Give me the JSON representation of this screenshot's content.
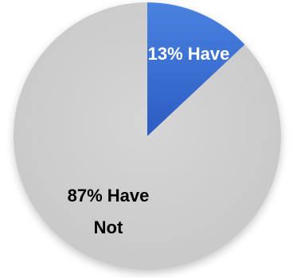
{
  "chart_data": {
    "type": "pie",
    "categories": [
      "Have",
      "Have Not"
    ],
    "values": [
      13,
      87
    ],
    "colors": [
      "#3a6fd1",
      "#d3d3d3"
    ],
    "label_colors": [
      "#ffffff",
      "#000000"
    ],
    "data_labels": [
      [
        "13% Have"
      ],
      [
        "87% Have",
        "Not"
      ]
    ],
    "title": ""
  }
}
